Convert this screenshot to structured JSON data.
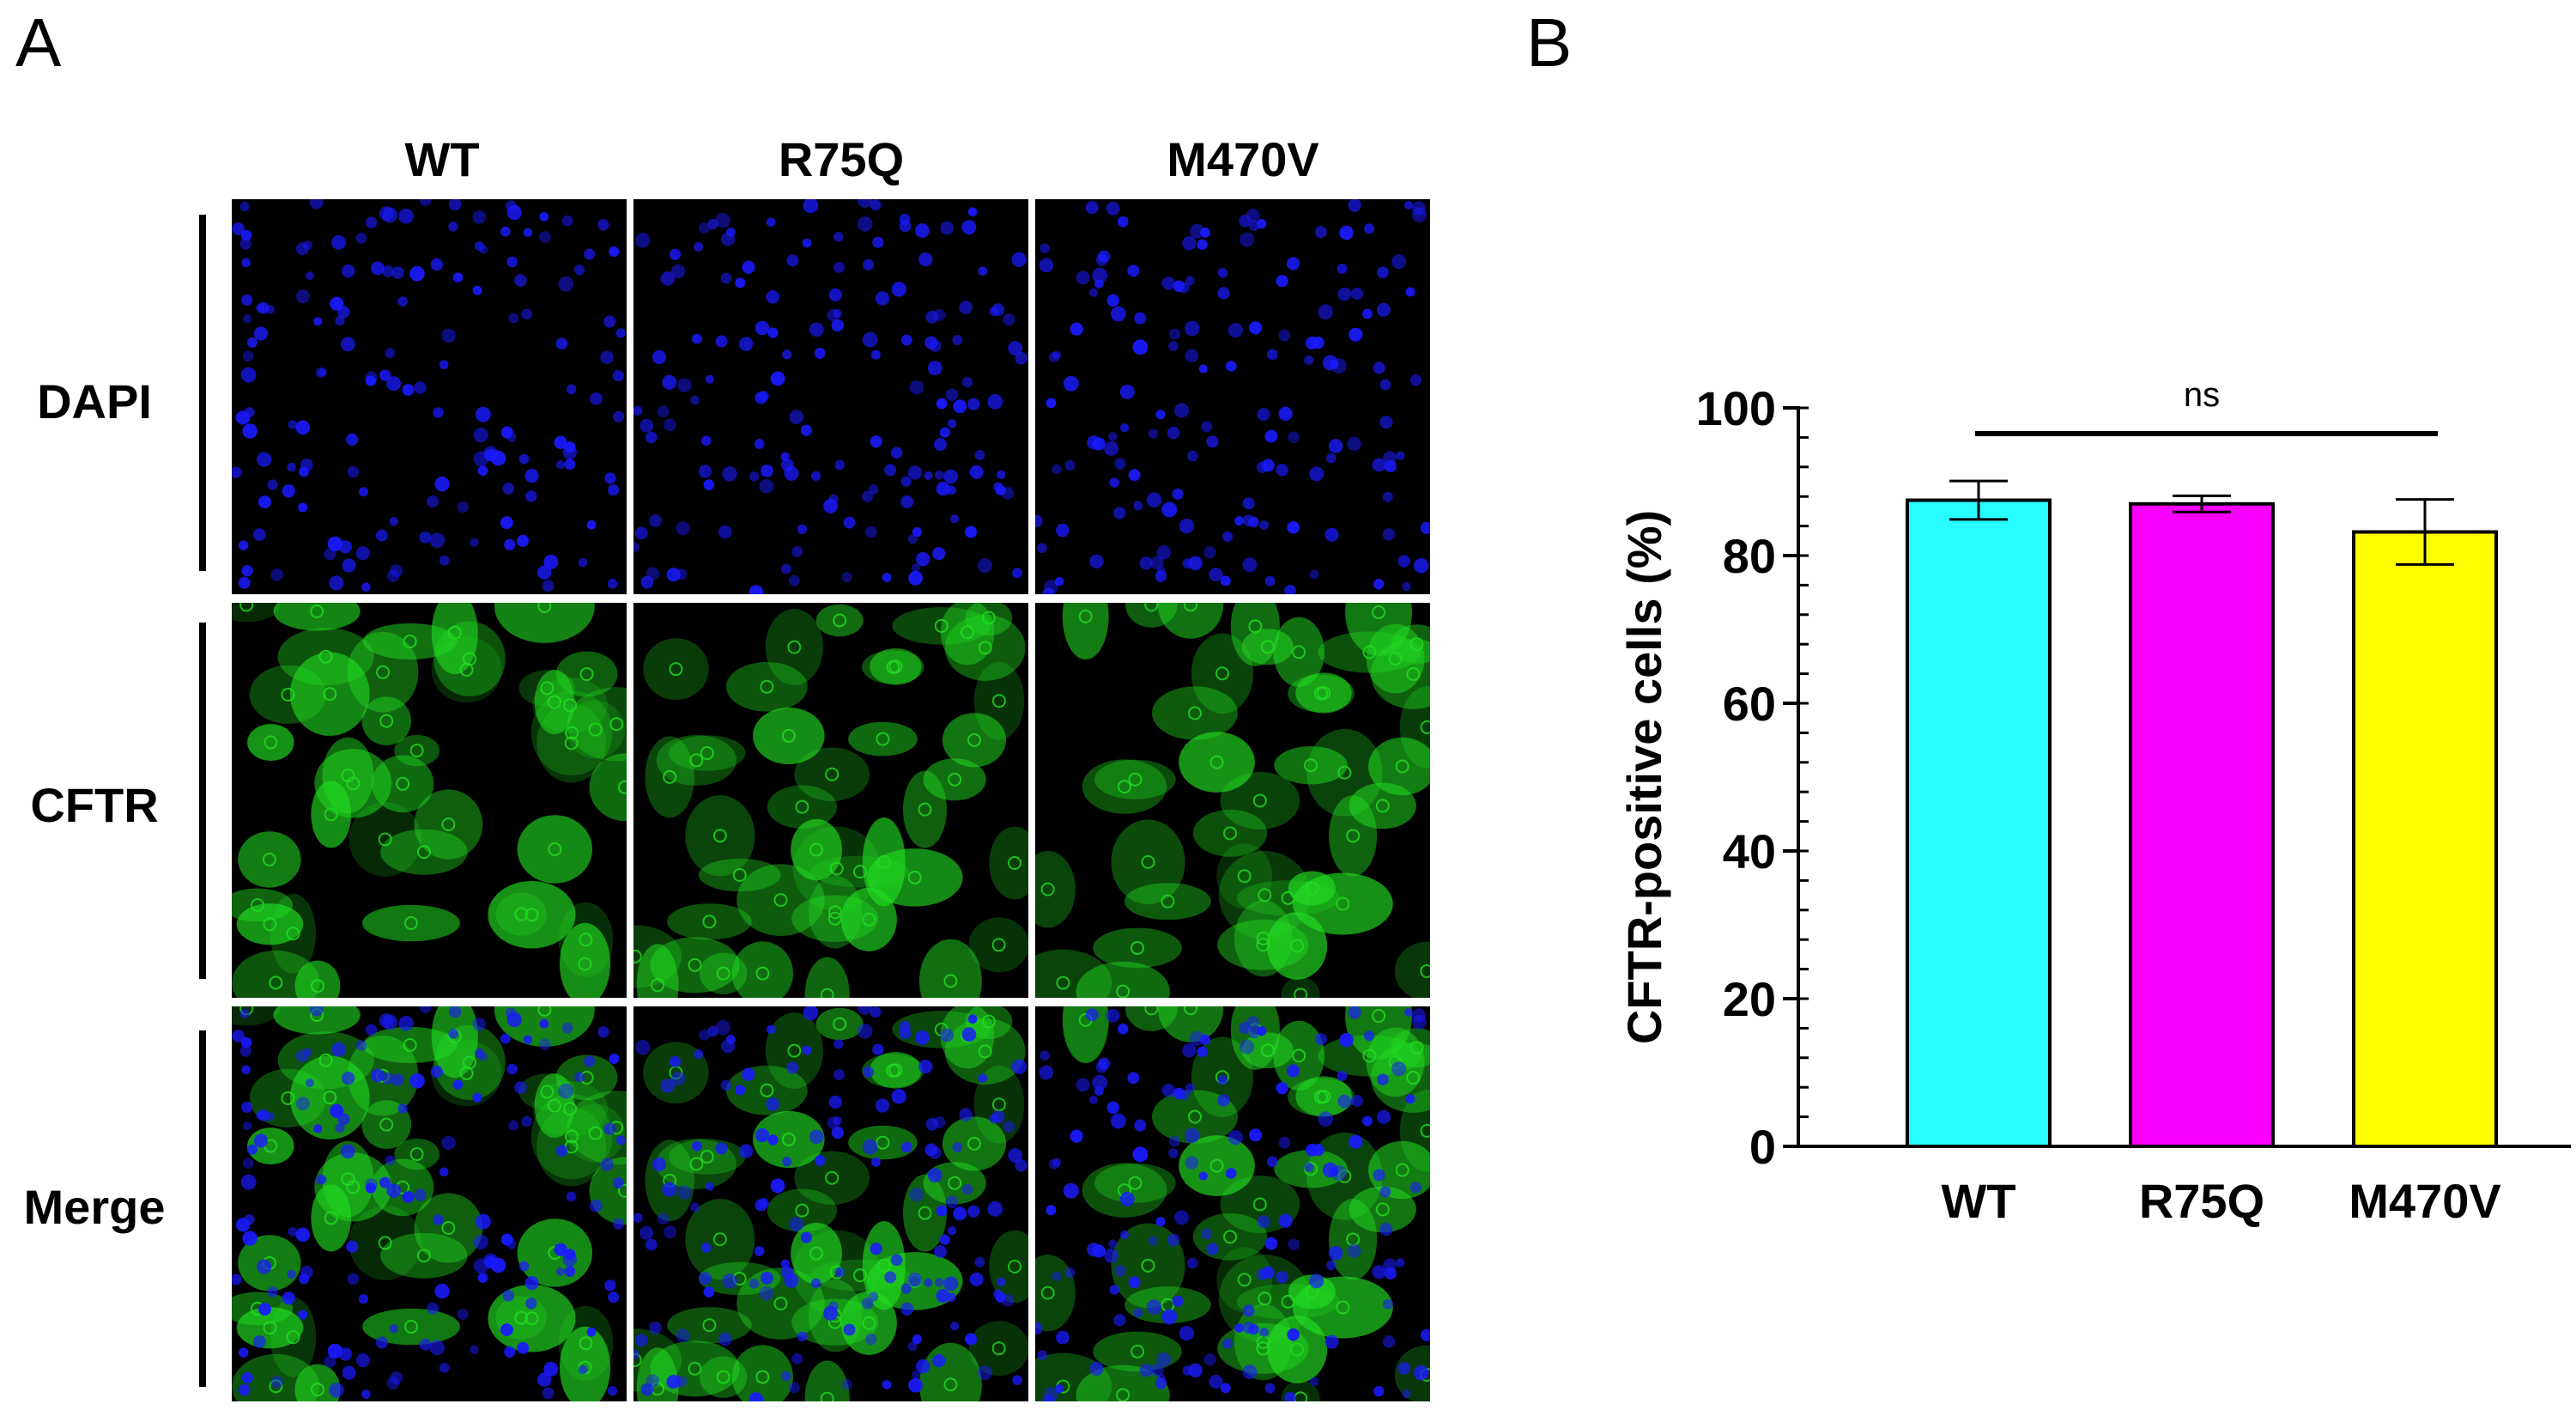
{
  "panels": {
    "a": "A",
    "b": "B"
  },
  "micrographs": {
    "columns": [
      "WT",
      "R75Q",
      "M470V"
    ],
    "rows": [
      "DAPI",
      "CFTR",
      "Merge"
    ],
    "colors": {
      "nuclei": "#1a1aff",
      "cftr": "#22dd22",
      "background": "#000000"
    }
  },
  "chart_data": {
    "type": "bar",
    "categories": [
      "WT",
      "R75Q",
      "M470V"
    ],
    "values": [
      87.5,
      87,
      83.2
    ],
    "errors": [
      2.6,
      1.1,
      4.4
    ],
    "colors": [
      "#28fdff",
      "#fa00fc",
      "#fefe00"
    ],
    "ylabel": "CFTR-positive cells (%)",
    "xlabel": "",
    "ylim": [
      0,
      100
    ],
    "yticks": [
      0,
      20,
      40,
      60,
      80,
      100
    ],
    "annotation": "ns",
    "grid": false
  }
}
